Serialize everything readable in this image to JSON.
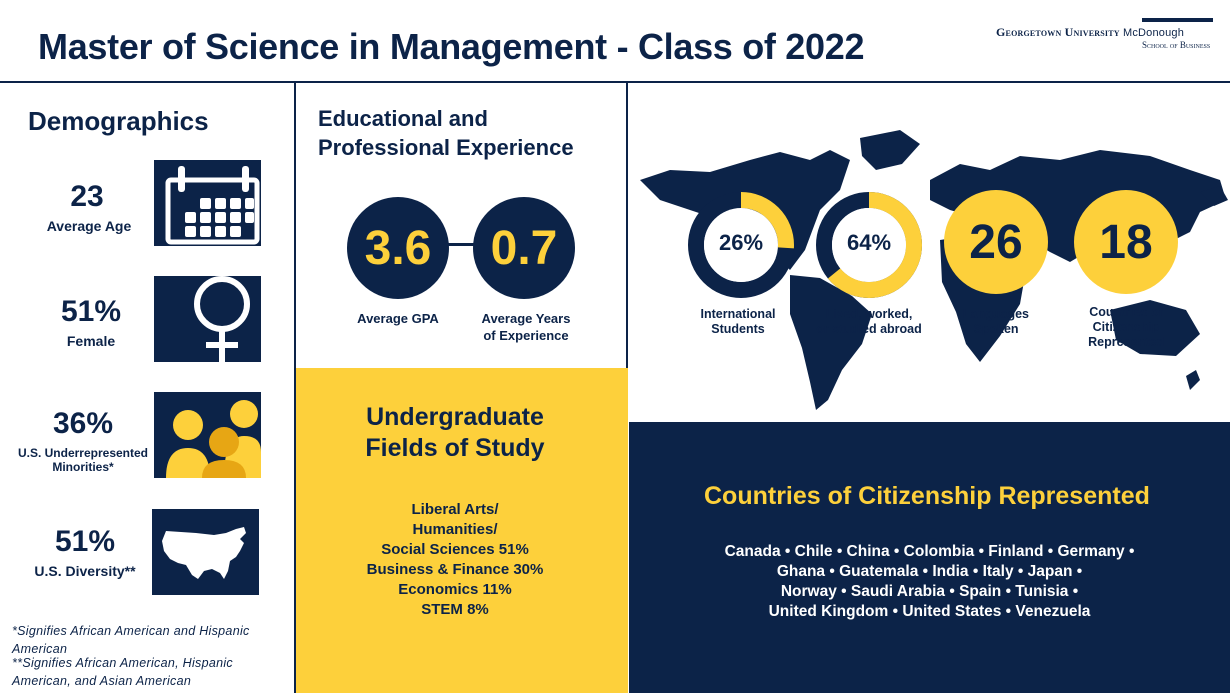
{
  "header": {
    "title": "Master of Science in Management - Class of 2022",
    "logo_line1": "Georgetown University",
    "logo_line1b": "McDonough",
    "logo_line2": "School of Business"
  },
  "demographics": {
    "heading": "Demographics",
    "stats": [
      {
        "value": "23",
        "label": "Average Age",
        "icon": "calendar-icon"
      },
      {
        "value": "51%",
        "label": "Female",
        "icon": "female-symbol-icon"
      },
      {
        "value": "36%",
        "label": "U.S. Underrepresented Minorities*",
        "icon": "people-group-icon"
      },
      {
        "value": "51%",
        "label": "U.S. Diversity**",
        "icon": "us-map-icon"
      }
    ],
    "footnote1": "*Signifies African American and Hispanic American",
    "footnote2": "**Signifies African American, Hispanic American, and Asian American"
  },
  "experience": {
    "heading_line1": "Educational and",
    "heading_line2": "Professional Experience",
    "gpa_value": "3.6",
    "gpa_label": "Average GPA",
    "years_value": "0.7",
    "years_label_line1": "Average Years",
    "years_label_line2": "of Experience"
  },
  "global": {
    "international": {
      "value": "26%",
      "percent": 26,
      "label_line1": "International",
      "label_line2": "Students"
    },
    "abroad": {
      "value": "64%",
      "percent": 64,
      "label_line1": "Lived, worked,",
      "label_line2": "or studied abroad"
    },
    "languages": {
      "value": "26",
      "label_line1": "Languages",
      "label_line2": "Spoken"
    },
    "countries": {
      "value": "18",
      "label_line1": "Countries of",
      "label_line2": "Citizenship",
      "label_line3": "Represented"
    }
  },
  "fields": {
    "heading_line1": "Undergraduate",
    "heading_line2": "Fields of Study",
    "items": [
      "Liberal Arts/",
      "Humanities/",
      "Social Sciences 51%",
      "Business & Finance 30%",
      "Economics 11%",
      "STEM 8%"
    ]
  },
  "citizenship": {
    "heading": "Countries of Citizenship Represented",
    "lines": [
      "Canada • Chile • China • Colombia • Finland • Germany •",
      "Ghana • Guatemala • India • Italy • Japan •",
      "Norway • Saudi Arabia • Spain • Tunisia •",
      "United Kingdom • United States • Venezuela"
    ]
  },
  "colors": {
    "navy": "#0c2348",
    "gold": "#fdd03b",
    "white": "#ffffff"
  }
}
